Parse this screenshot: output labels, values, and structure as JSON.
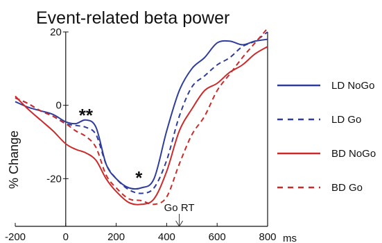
{
  "chart_data": {
    "type": "line",
    "title": "Event-related beta power",
    "ylabel": "% Change",
    "x_unit": "ms",
    "xlim": [
      -200,
      800
    ],
    "ylim": [
      -33,
      20
    ],
    "x_ticks": [
      "-200",
      "0",
      "200",
      "400",
      "600",
      "800"
    ],
    "y_ticks": [
      "20",
      "0",
      "-20"
    ],
    "x_tick_values": [
      -200,
      0,
      200,
      400,
      600,
      800
    ],
    "y_tick_values": [
      20,
      0,
      -20
    ],
    "reference_lines": {
      "x": [
        0
      ]
    },
    "annotations": [
      {
        "text": "**",
        "x": 80,
        "y": -1
      },
      {
        "text": "*",
        "x": 290,
        "y": -18
      },
      {
        "text": "Go RT",
        "x": 450,
        "y": -30,
        "arrow": true
      }
    ],
    "legend_position": "right",
    "series": [
      {
        "name": "LD NoGo",
        "color": "#2e3d9c",
        "style": "solid",
        "x": [
          -200,
          -150,
          -100,
          -50,
          0,
          40,
          80,
          120,
          160,
          200,
          250,
          300,
          350,
          400,
          450,
          500,
          550,
          600,
          650,
          700,
          750,
          800
        ],
        "y": [
          1,
          -0.5,
          -1.5,
          -2.5,
          -4.5,
          -5,
          -4,
          -6,
          -16,
          -20,
          -22.5,
          -22.5,
          -20,
          -7,
          4,
          10,
          13,
          17,
          17.5,
          16.5,
          17.5,
          18
        ]
      },
      {
        "name": "LD Go",
        "color": "#2e3d9c",
        "style": "dashed",
        "x": [
          -200,
          -150,
          -100,
          -50,
          0,
          40,
          80,
          120,
          160,
          200,
          250,
          300,
          350,
          400,
          450,
          500,
          550,
          600,
          650,
          700,
          750,
          800
        ],
        "y": [
          2,
          0.5,
          -1.5,
          -3,
          -5,
          -5.5,
          -6,
          -8,
          -16,
          -20,
          -23,
          -24,
          -22.5,
          -15,
          -3,
          5,
          8,
          11,
          13,
          16,
          17.5,
          20
        ]
      },
      {
        "name": "BD NoGo",
        "color": "#cc2a2a",
        "style": "solid",
        "x": [
          -200,
          -150,
          -100,
          -50,
          0,
          40,
          80,
          120,
          160,
          200,
          250,
          300,
          350,
          400,
          450,
          500,
          550,
          600,
          650,
          700,
          750,
          800
        ],
        "y": [
          2.5,
          -1,
          -4,
          -7,
          -10.5,
          -12,
          -13,
          -15,
          -20,
          -23.5,
          -26.5,
          -27,
          -25.5,
          -18,
          -7,
          -1,
          4,
          6,
          9,
          11,
          14,
          16
        ]
      },
      {
        "name": "BD Go",
        "color": "#cc2a2a",
        "style": "dashed",
        "x": [
          -200,
          -150,
          -100,
          -50,
          0,
          40,
          80,
          120,
          160,
          200,
          250,
          300,
          350,
          400,
          450,
          500,
          550,
          600,
          650,
          700,
          750,
          800
        ],
        "y": [
          2,
          0.5,
          -1.5,
          -3,
          -5,
          -7,
          -8.5,
          -11.5,
          -19,
          -22.5,
          -25.5,
          -26,
          -27,
          -25,
          -16,
          -8,
          -3,
          4,
          8.5,
          13,
          17,
          21
        ]
      }
    ]
  }
}
